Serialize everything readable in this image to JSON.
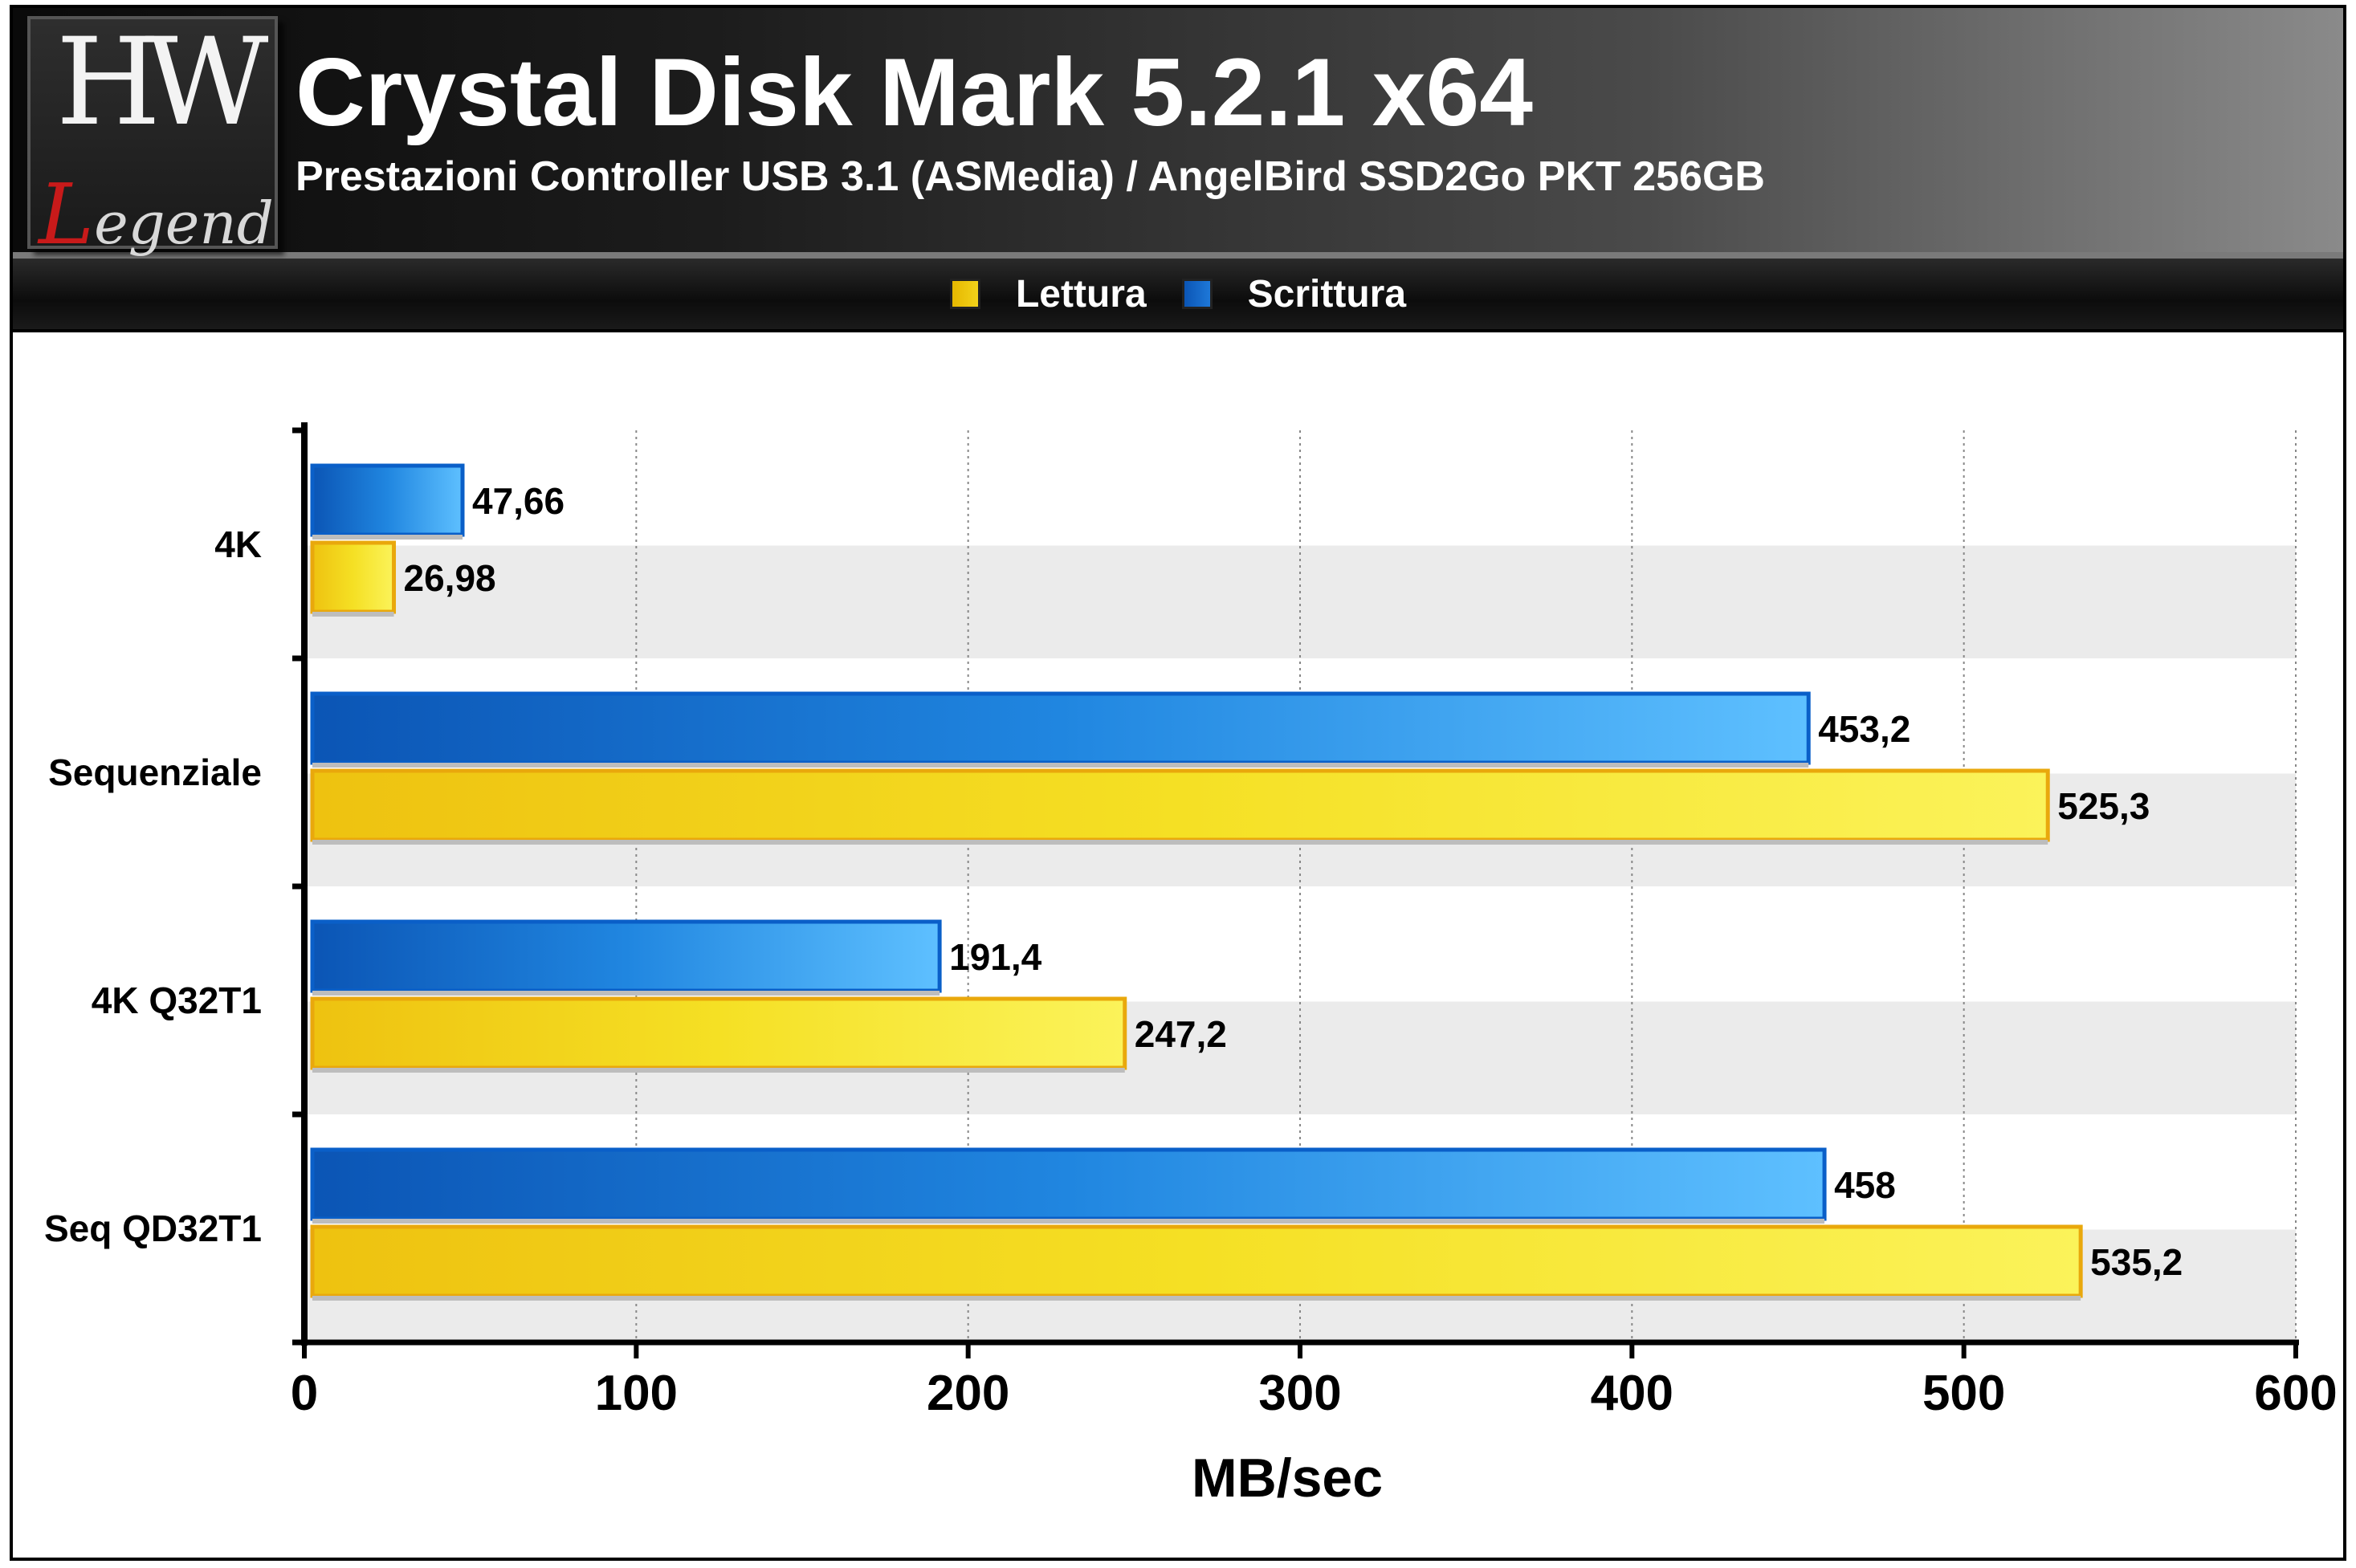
{
  "header": {
    "title": "Crystal Disk Mark 5.2.1 x64",
    "subtitle": "Prestazioni Controller USB 3.1 (ASMedia) / AngelBird SSD2Go PKT 256GB"
  },
  "logo": {
    "top_text": "HW",
    "bottom_text": "Legend"
  },
  "legend": {
    "items": [
      {
        "label": "Lettura",
        "color": "#f2d21a"
      },
      {
        "label": "Scrittura",
        "color": "#1e78d8"
      }
    ]
  },
  "chart_data": {
    "type": "bar",
    "orientation": "horizontal",
    "categories": [
      "4K",
      "Sequenziale",
      "4K Q32T1",
      "Seq QD32T1"
    ],
    "series": [
      {
        "name": "Scrittura",
        "values": [
          47.66,
          453.2,
          191.4,
          458
        ],
        "labels": [
          "47,66",
          "453,2",
          "191,4",
          "458"
        ],
        "color": "#1e78d8"
      },
      {
        "name": "Lettura",
        "values": [
          26.98,
          525.3,
          247.2,
          535.2
        ],
        "labels": [
          "26,98",
          "525,3",
          "247,2",
          "535,2"
        ],
        "color": "#f2d21a"
      }
    ],
    "xlabel": "MB/sec",
    "ylabel": "",
    "xlim": [
      0,
      600
    ],
    "xticks": [
      0,
      100,
      200,
      300,
      400,
      500,
      600
    ],
    "grid": "vertical-dotted",
    "legend_position": "top"
  }
}
